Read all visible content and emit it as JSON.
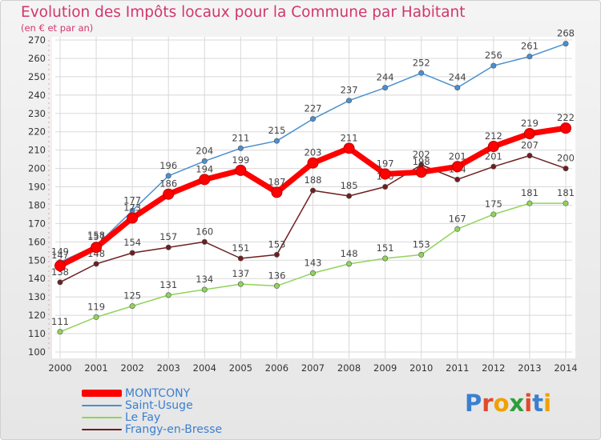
{
  "title": "Evolution des Impôts locaux pour la Commune par Habitant",
  "subtitle": "(en € et par an)",
  "logo": {
    "text": "Proxiti",
    "colors": [
      "#3a7fd0",
      "#e04a2a",
      "#f0a000",
      "#2e9e3a",
      "#e04a2a",
      "#3a7fd0",
      "#f0a000"
    ]
  },
  "chart_data": {
    "type": "line",
    "x": [
      "2000",
      "2001",
      "2002",
      "2003",
      "2004",
      "2005",
      "2006",
      "2007",
      "2008",
      "2009",
      "2010",
      "2011",
      "2012",
      "2013",
      "2014"
    ],
    "ylim": [
      100,
      270
    ],
    "yticks": [
      100,
      110,
      120,
      130,
      140,
      150,
      160,
      170,
      180,
      190,
      200,
      210,
      220,
      230,
      240,
      250,
      260,
      270
    ],
    "grid": true,
    "legend_position": "bottom-left",
    "series": [
      {
        "name": "Frangy-en-Bresse",
        "color": "#6e1e1e",
        "values": [
          138,
          148,
          154,
          157,
          160,
          151,
          153,
          188,
          185,
          190,
          202,
          194,
          201,
          207,
          200
        ],
        "labels": [
          "138",
          "148",
          "154",
          "157",
          "160",
          "151",
          "153",
          "188",
          "185",
          "190",
          "202",
          "194",
          "201",
          "207",
          "200"
        ]
      },
      {
        "name": "Le Fay",
        "color": "#8fd45a",
        "values": [
          111,
          119,
          125,
          131,
          134,
          137,
          136,
          143,
          148,
          151,
          153,
          167,
          175,
          181,
          181
        ],
        "labels": [
          "111",
          "119",
          "125",
          "131",
          "134",
          "137",
          "136",
          "143",
          "148",
          "151",
          "153",
          "167",
          "175",
          "181",
          "181"
        ]
      },
      {
        "name": "Saint-Usuge",
        "color": "#4a8fd0",
        "values": [
          149,
          158,
          177,
          196,
          204,
          211,
          215,
          227,
          237,
          244,
          252,
          244,
          256,
          261,
          268
        ],
        "labels": [
          "149",
          "158",
          "177",
          "196",
          "204",
          "211",
          "215",
          "227",
          "237",
          "244",
          "252",
          "244",
          "256",
          "261",
          "268"
        ]
      },
      {
        "name": "MONTCONY",
        "color": "#ff0000",
        "values": [
          147,
          157,
          173,
          186,
          194,
          199,
          187,
          203,
          211,
          197,
          198,
          201,
          212,
          219,
          222
        ],
        "labels": [
          "147",
          "157",
          "173",
          "186",
          "194",
          "199",
          "187",
          "203",
          "211",
          "197",
          "198",
          "201",
          "212",
          "219",
          "222"
        ]
      }
    ],
    "legend": [
      {
        "name": "MONTCONY",
        "color": "#ff0000",
        "label_color": "#3a7fd0"
      },
      {
        "name": "Saint-Usuge",
        "color": "#4a8fd0",
        "label_color": "#3a7fd0"
      },
      {
        "name": "Le Fay",
        "color": "#8fd45a",
        "label_color": "#3a7fd0"
      },
      {
        "name": "Frangy-en-Bresse",
        "color": "#6e1e1e",
        "label_color": "#3a7fd0"
      }
    ]
  }
}
